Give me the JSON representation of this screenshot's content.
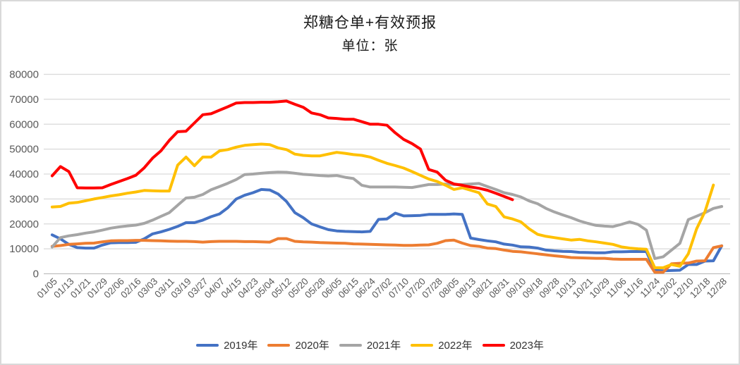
{
  "header": {
    "title": "郑糖仓单+有效预报",
    "subtitle": "单位：张"
  },
  "colors": {
    "gridline": "#d9d9d9",
    "axis_line": "#bfbfbf",
    "tick_label": "#595959",
    "title_text": "#1a1a1a",
    "legend_text": "#333333",
    "background": "#ffffff",
    "border": "#d9d9d9"
  },
  "chart_data": {
    "type": "line",
    "title": "郑糖仓单+有效预报",
    "subtitle": "单位：张",
    "grid": true,
    "legend_position": "bottom",
    "ylim": [
      0,
      80000
    ],
    "y_ticks": [
      0,
      10000,
      20000,
      30000,
      40000,
      50000,
      60000,
      70000,
      80000
    ],
    "x_tick_labels": [
      "01/05",
      "01/13",
      "01/21",
      "01/29",
      "02/06",
      "02/16",
      "03/03",
      "03/11",
      "03/19",
      "03/27",
      "04/07",
      "04/15",
      "04/23",
      "05/04",
      "05/12",
      "05/20",
      "05/28",
      "06/05",
      "06/15",
      "06/24",
      "07/02",
      "07/10",
      "07/20",
      "07/28",
      "08/05",
      "08/13",
      "08/21",
      "08/31",
      "09/10",
      "09/18",
      "09/28",
      "10/13",
      "10/21",
      "10/29",
      "11/06",
      "11/16",
      "11/24",
      "12/02",
      "12/10",
      "12/18",
      "12/28"
    ],
    "samples_per_tick": 2,
    "series": [
      {
        "name": "2019年",
        "color": "#4472C4",
        "values": [
          15600,
          14000,
          11800,
          10500,
          10300,
          10300,
          11500,
          12400,
          12500,
          12500,
          12600,
          14000,
          16000,
          16800,
          17800,
          19000,
          20500,
          20500,
          21500,
          22900,
          24000,
          26500,
          30000,
          31500,
          32500,
          33800,
          33600,
          32000,
          29000,
          24500,
          22500,
          20000,
          18800,
          17700,
          17200,
          17000,
          16900,
          16800,
          17000,
          21800,
          22000,
          24300,
          23200,
          23300,
          23400,
          23800,
          23800,
          23800,
          24000,
          23800,
          14300,
          13700,
          13200,
          12800,
          11900,
          11500,
          10800,
          10700,
          10300,
          9500,
          9200,
          9000,
          8900,
          8600,
          8500,
          8400,
          8400,
          8800,
          8800,
          8900,
          8900,
          8900,
          1300,
          1200,
          1300,
          1400,
          3700,
          3700,
          5100,
          5200,
          11200
        ]
      },
      {
        "name": "2020年",
        "color": "#ED7D31",
        "values": [
          11000,
          11300,
          11800,
          12000,
          12200,
          12300,
          12800,
          13200,
          13300,
          13300,
          13400,
          13400,
          13300,
          13200,
          13100,
          13000,
          13000,
          12900,
          12700,
          12900,
          13000,
          13000,
          13000,
          12900,
          12900,
          12800,
          12700,
          14100,
          14100,
          13000,
          12800,
          12700,
          12500,
          12400,
          12300,
          12200,
          12000,
          11900,
          11800,
          11700,
          11600,
          11500,
          11400,
          11400,
          11500,
          11600,
          12200,
          13300,
          13500,
          12300,
          11300,
          11000,
          10300,
          10100,
          9500,
          9000,
          8800,
          8400,
          8000,
          7600,
          7200,
          6900,
          6500,
          6400,
          6300,
          6200,
          6200,
          5900,
          5800,
          5800,
          5800,
          5800,
          600,
          600,
          4000,
          4200,
          4300,
          5100,
          5200,
          10500,
          11200
        ]
      },
      {
        "name": "2021年",
        "color": "#A5A5A5",
        "values": [
          10700,
          14500,
          15200,
          15700,
          16300,
          16800,
          17500,
          18300,
          18800,
          19200,
          19500,
          20200,
          21500,
          23000,
          24500,
          27500,
          30400,
          30700,
          31800,
          33700,
          35000,
          36300,
          37800,
          39800,
          40000,
          40300,
          40600,
          40800,
          40700,
          40300,
          39900,
          39700,
          39400,
          39200,
          39400,
          38700,
          38200,
          35500,
          34800,
          34800,
          34800,
          34800,
          34700,
          34600,
          35200,
          35800,
          35800,
          36000,
          35800,
          35800,
          36000,
          36200,
          35000,
          33800,
          32500,
          31800,
          30800,
          29200,
          28100,
          26200,
          24800,
          23600,
          22500,
          21200,
          20200,
          19400,
          19100,
          18900,
          19800,
          20800,
          19800,
          17500,
          6100,
          6800,
          9500,
          12200,
          21700,
          23100,
          24500,
          26200,
          27000
        ]
      },
      {
        "name": "2022年",
        "color": "#FFC000",
        "values": [
          26800,
          27000,
          28300,
          28600,
          29300,
          30000,
          30600,
          31200,
          31700,
          32300,
          32800,
          33400,
          33300,
          33200,
          33200,
          43600,
          46800,
          43300,
          46800,
          46800,
          49300,
          49800,
          50800,
          51500,
          51800,
          52000,
          51800,
          50500,
          49800,
          48000,
          47500,
          47300,
          47300,
          48000,
          48700,
          48300,
          47800,
          47500,
          46800,
          45500,
          44300,
          43400,
          42400,
          41000,
          39500,
          38000,
          37000,
          35500,
          33800,
          34500,
          33500,
          32500,
          28000,
          27000,
          22800,
          22000,
          20800,
          18000,
          15800,
          15000,
          14500,
          14000,
          13500,
          13800,
          13200,
          12800,
          12300,
          11800,
          10800,
          10300,
          10000,
          9800,
          2400,
          2400,
          3700,
          3000,
          8000,
          18000,
          25000,
          35600,
          null
        ]
      },
      {
        "name": "2023年",
        "color": "#FF0000",
        "values": [
          39300,
          43000,
          41000,
          34500,
          34400,
          34400,
          34500,
          35800,
          37000,
          38200,
          39500,
          42500,
          46400,
          49300,
          53500,
          57000,
          57200,
          60500,
          63800,
          64200,
          65600,
          67000,
          68500,
          68700,
          68700,
          68800,
          68800,
          69000,
          69300,
          68000,
          66800,
          64500,
          63800,
          62500,
          62300,
          62000,
          62000,
          61000,
          60000,
          60000,
          59600,
          56500,
          53900,
          52200,
          50000,
          41800,
          40800,
          37500,
          36000,
          35500,
          34800,
          34300,
          33500,
          32300,
          31000,
          29700,
          null,
          null,
          null,
          null,
          null,
          null,
          null,
          null,
          null,
          null,
          null,
          null,
          null,
          null,
          null,
          null,
          null,
          null,
          null,
          null,
          null,
          null,
          null,
          null,
          null
        ]
      }
    ]
  }
}
